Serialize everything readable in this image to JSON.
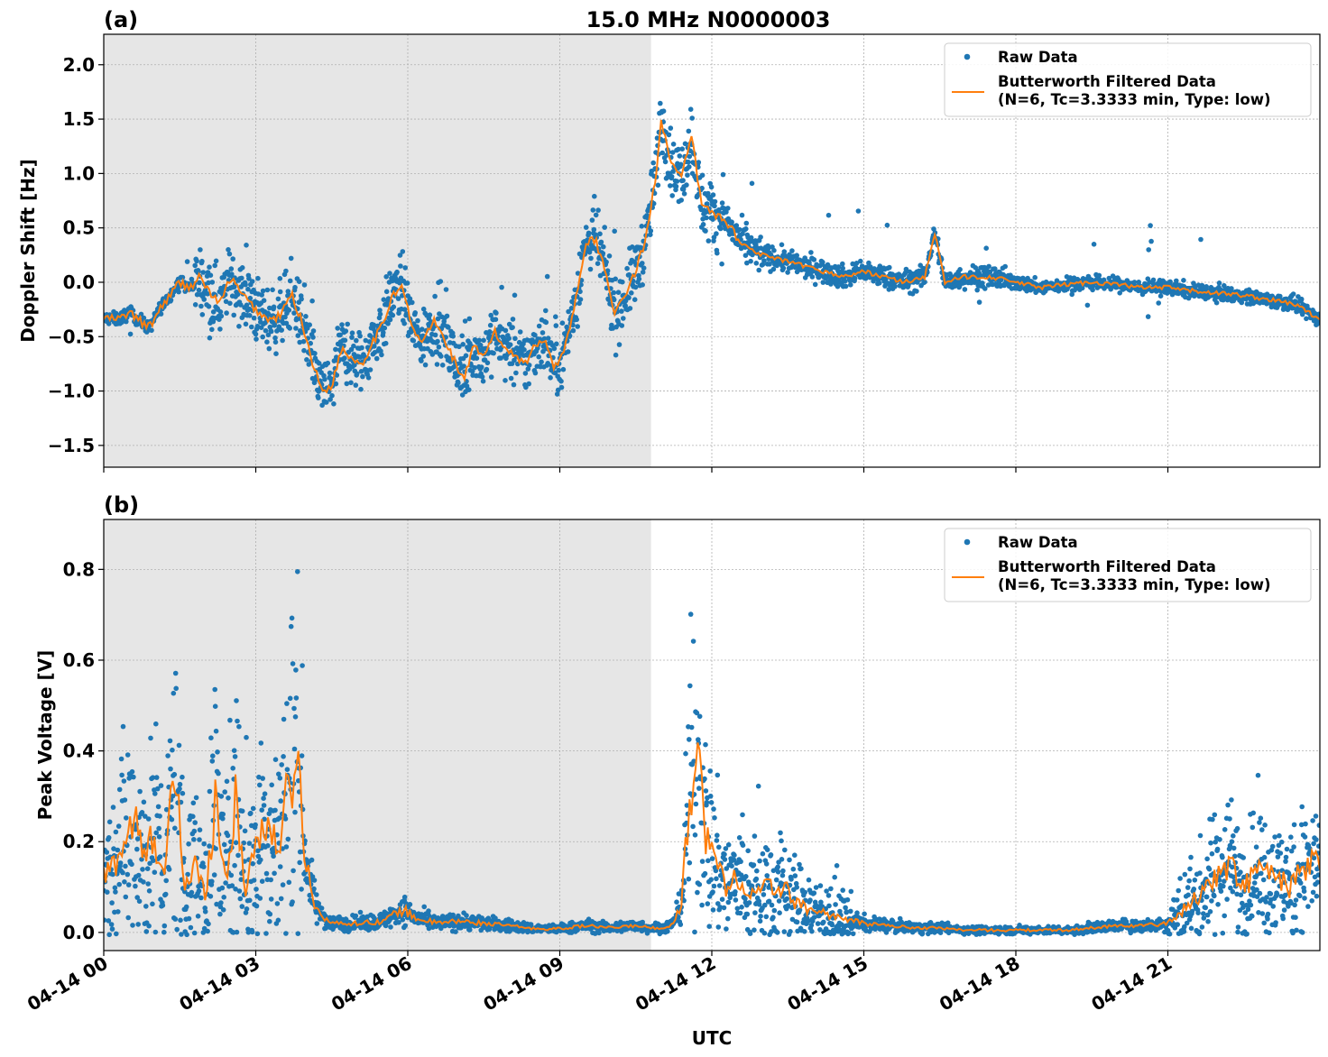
{
  "figure_title": "15.0 MHz N0000003",
  "x_axis_label": "UTC",
  "x_tick_labels": [
    "04-14 00",
    "04-14 03",
    "04-14 06",
    "04-14 09",
    "04-14 12",
    "04-14 15",
    "04-14 18",
    "04-14 21"
  ],
  "colors": {
    "raw": "#1f77b4",
    "filtered": "#ff7f0e",
    "night_shade": "#e6e6e6",
    "grid": "#b0b0b0"
  },
  "chart_data": [
    {
      "type": "scatter",
      "panel_label": "(a)",
      "ylabel": "Doppler Shift [Hz]",
      "xlim": [
        0,
        24
      ],
      "ylim": [
        -1.7,
        2.28
      ],
      "yticks": [
        -1.5,
        -1.0,
        -0.5,
        0.0,
        0.5,
        1.0,
        1.5,
        2.0
      ],
      "ytick_labels": [
        "−1.5",
        "−1.0",
        "−0.5",
        "0.0",
        "0.5",
        "1.0",
        "1.5",
        "2.0"
      ],
      "grid": true,
      "legend_position": "top-right",
      "shaded_x_range": [
        0,
        10.8
      ],
      "legend": [
        {
          "kind": "marker",
          "label": "Raw Data"
        },
        {
          "kind": "line",
          "label": "Butterworth Filtered Data",
          "label2": "(N=6, Tc=3.3333 min, Type: low)"
        }
      ],
      "series": [
        {
          "name": "Butterworth Filtered Data",
          "x": [
            0,
            0.3,
            0.5,
            0.7,
            0.9,
            1.1,
            1.3,
            1.5,
            1.7,
            1.9,
            2.1,
            2.3,
            2.5,
            2.7,
            2.9,
            3.1,
            3.3,
            3.5,
            3.7,
            3.9,
            4.1,
            4.3,
            4.5,
            4.7,
            4.9,
            5.1,
            5.3,
            5.5,
            5.7,
            5.9,
            6.1,
            6.3,
            6.5,
            6.7,
            6.9,
            7.1,
            7.3,
            7.5,
            7.7,
            7.9,
            8.1,
            8.3,
            8.5,
            8.7,
            8.9,
            9.1,
            9.3,
            9.5,
            9.7,
            9.9,
            10.1,
            10.3,
            10.5,
            10.7,
            10.9,
            11.0,
            11.2,
            11.4,
            11.6,
            11.8,
            12.0,
            12.3,
            12.6,
            13.0,
            13.4,
            13.8,
            14.2,
            14.6,
            15.0,
            15.4,
            15.8,
            16.2,
            16.4,
            16.6,
            17.0,
            17.5,
            18.0,
            18.5,
            19.0,
            19.5,
            20.0,
            20.5,
            21.0,
            21.5,
            22.0,
            22.5,
            23.0,
            23.5,
            24.0
          ],
          "y": [
            -0.33,
            -0.34,
            -0.28,
            -0.35,
            -0.42,
            -0.25,
            -0.12,
            0.0,
            -0.05,
            0.05,
            -0.1,
            -0.2,
            0.05,
            -0.1,
            -0.2,
            -0.3,
            -0.35,
            -0.3,
            -0.1,
            -0.35,
            -0.7,
            -1.0,
            -0.95,
            -0.6,
            -0.7,
            -0.75,
            -0.55,
            -0.4,
            -0.1,
            -0.05,
            -0.45,
            -0.55,
            -0.35,
            -0.5,
            -0.7,
            -0.9,
            -0.6,
            -0.7,
            -0.45,
            -0.6,
            -0.65,
            -0.75,
            -0.6,
            -0.5,
            -0.8,
            -0.6,
            -0.2,
            0.35,
            0.4,
            0.1,
            -0.3,
            -0.1,
            0.1,
            0.4,
            1.0,
            1.5,
            1.1,
            0.95,
            1.35,
            0.7,
            0.65,
            0.55,
            0.35,
            0.25,
            0.2,
            0.15,
            0.1,
            0.05,
            0.1,
            0.05,
            0.0,
            0.05,
            0.45,
            0.0,
            0.05,
            0.05,
            0.0,
            -0.05,
            -0.02,
            0.0,
            -0.02,
            -0.05,
            -0.05,
            -0.08,
            -0.1,
            -0.12,
            -0.16,
            -0.2,
            -0.34
          ]
        },
        {
          "name": "Raw Data",
          "x": [],
          "y": []
        }
      ]
    },
    {
      "type": "scatter",
      "panel_label": "(b)",
      "ylabel": "Peak Voltage [V]",
      "xlim": [
        0,
        24
      ],
      "ylim": [
        -0.04,
        0.91
      ],
      "yticks": [
        0.0,
        0.2,
        0.4,
        0.6,
        0.8
      ],
      "ytick_labels": [
        "0.0",
        "0.2",
        "0.4",
        "0.6",
        "0.8"
      ],
      "grid": true,
      "legend_position": "top-right",
      "shaded_x_range": [
        0,
        10.8
      ],
      "legend": [
        {
          "kind": "marker",
          "label": "Raw Data"
        },
        {
          "kind": "line",
          "label": "Butterworth Filtered Data",
          "label2": "(N=6, Tc=3.3333 min, Type: low)"
        }
      ],
      "series": [
        {
          "name": "Butterworth Filtered Data",
          "x": [
            0,
            0.2,
            0.4,
            0.6,
            0.8,
            1.0,
            1.2,
            1.4,
            1.6,
            1.8,
            2.0,
            2.2,
            2.4,
            2.6,
            2.8,
            3.0,
            3.2,
            3.4,
            3.6,
            3.8,
            4.0,
            4.2,
            4.5,
            5.0,
            5.5,
            5.9,
            6.2,
            6.6,
            7.0,
            7.5,
            8.0,
            8.5,
            9.0,
            9.5,
            10.0,
            10.5,
            10.8,
            11.0,
            11.2,
            11.4,
            11.55,
            11.7,
            11.9,
            12.1,
            12.3,
            12.5,
            12.8,
            13.1,
            13.4,
            13.7,
            14.0,
            14.3,
            14.6,
            15.0,
            15.5,
            16.0,
            16.5,
            17.0,
            17.5,
            18.0,
            18.5,
            19.0,
            19.5,
            20.0,
            20.5,
            21.0,
            21.3,
            21.6,
            21.9,
            22.2,
            22.5,
            22.8,
            23.1,
            23.4,
            23.7,
            24.0
          ],
          "y": [
            0.12,
            0.15,
            0.2,
            0.25,
            0.16,
            0.22,
            0.12,
            0.35,
            0.1,
            0.15,
            0.08,
            0.3,
            0.12,
            0.28,
            0.1,
            0.2,
            0.25,
            0.18,
            0.28,
            0.4,
            0.15,
            0.05,
            0.02,
            0.02,
            0.025,
            0.05,
            0.03,
            0.02,
            0.025,
            0.02,
            0.015,
            0.008,
            0.008,
            0.015,
            0.01,
            0.015,
            0.01,
            0.01,
            0.015,
            0.06,
            0.3,
            0.42,
            0.2,
            0.15,
            0.1,
            0.12,
            0.08,
            0.1,
            0.1,
            0.06,
            0.05,
            0.04,
            0.03,
            0.02,
            0.015,
            0.01,
            0.01,
            0.005,
            0.005,
            0.005,
            0.005,
            0.005,
            0.01,
            0.015,
            0.015,
            0.02,
            0.05,
            0.08,
            0.12,
            0.15,
            0.1,
            0.14,
            0.12,
            0.1,
            0.14,
            0.15
          ]
        },
        {
          "name": "Raw Data",
          "x": [],
          "y": []
        }
      ]
    }
  ]
}
